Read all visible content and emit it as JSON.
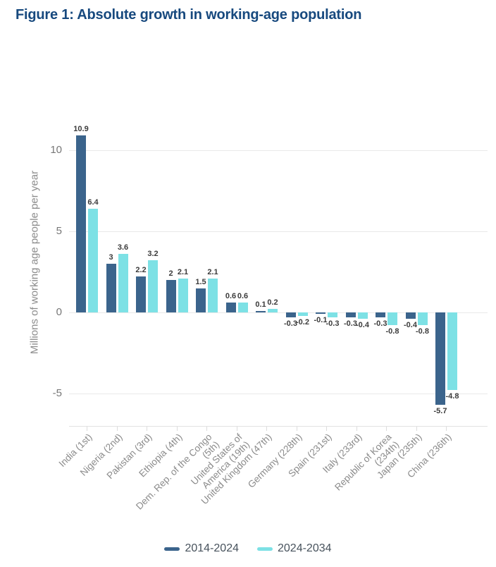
{
  "figure_title": "Figure 1: Absolute growth in working-age population",
  "colors": {
    "title": "#17497e",
    "series_2014_2024": "#3b648c",
    "series_2024_2034": "#7de1e5",
    "gridline": "#e9e9e9",
    "axis_text": "#8a8a8a",
    "value_label": "#3b3b3b"
  },
  "chart_data": {
    "type": "bar",
    "title": "Figure 1: Absolute growth in working-age population",
    "xlabel": "",
    "ylabel": "Millions of working age people per year",
    "ylim": [
      -6.5,
      11.5
    ],
    "yticks": [
      10,
      5,
      0,
      -5
    ],
    "grid": true,
    "legend_position": "bottom",
    "categories": [
      "India (1st)",
      "Nigeria (2nd)",
      "Pakistan (3rd)",
      "Ethiopia (4th)",
      "Dem. Rep. of the Congo\n(5th)",
      "United States of\nAmerica (19th)",
      "United Kingdom (47th)",
      "Germany (228th)",
      "Spain (231st)",
      "Italy (233rd)",
      "Republic of Korea\n(234th)",
      "Japan (235th)",
      "China (236th)"
    ],
    "series": [
      {
        "name": "2014-2024",
        "color": "#3b648c",
        "values": [
          10.9,
          3,
          2.2,
          2,
          1.5,
          0.6,
          0.1,
          -0.3,
          -0.1,
          -0.3,
          -0.3,
          -0.4,
          -5.7
        ]
      },
      {
        "name": "2024-2034",
        "color": "#7de1e5",
        "values": [
          6.4,
          3.6,
          3.2,
          2.1,
          2.1,
          0.6,
          0.2,
          -0.2,
          -0.3,
          -0.4,
          -0.8,
          -0.8,
          -4.8
        ]
      }
    ]
  }
}
